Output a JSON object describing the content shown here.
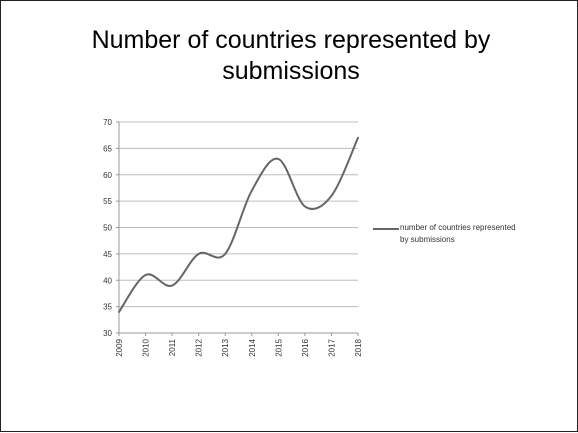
{
  "slide": {
    "title": "Number of countries represented by\nsubmissions"
  },
  "chart_data": {
    "type": "line",
    "title": "Number of countries represented by submissions",
    "xlabel": "",
    "ylabel": "",
    "x": [
      "2009",
      "2010",
      "2011",
      "2012",
      "2013",
      "2014",
      "2015",
      "2016",
      "2017",
      "2018"
    ],
    "series": [
      {
        "name": "number of countries represented by submissions",
        "values": [
          34,
          41,
          39,
          45,
          45,
          57,
          63,
          54,
          56,
          67
        ],
        "color": "#666666"
      }
    ],
    "ylim": [
      30,
      70
    ],
    "yticks": [
      30,
      35,
      40,
      45,
      50,
      55,
      60,
      65,
      70
    ],
    "grid": true,
    "smooth": true,
    "legend_position": "right"
  }
}
